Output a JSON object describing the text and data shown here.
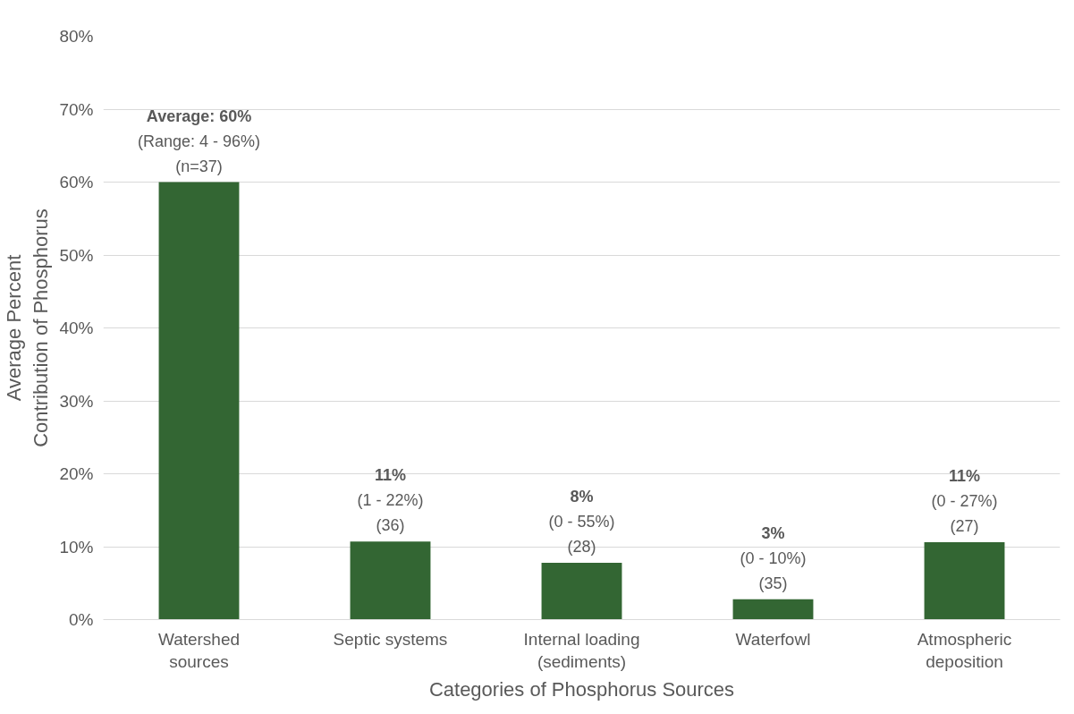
{
  "chart_data": {
    "type": "bar",
    "xlabel": "Categories of Phosphorus Sources",
    "ylabel": "Average Percent\nContribution of Phosphorus",
    "categories": [
      "Watershed\nsources",
      "Septic systems",
      "Internal loading\n(sediments)",
      "Waterfowl",
      "Atmospheric\ndeposition"
    ],
    "values": [
      60,
      10.7,
      7.8,
      2.8,
      10.6
    ],
    "color": "#336633",
    "value_labels": [
      "Average: 60%\n(Range: 4 - 96%)\n(n=37)",
      "11%\n(1 - 22%)\n(36)",
      "8%\n(0 - 55%)\n(28)",
      "3%\n(0 - 10%)\n(35)",
      "11%\n(0 - 27%)\n(27)"
    ],
    "ylim": [
      0,
      80
    ],
    "yticks": [
      {
        "value": 0,
        "label": "0%"
      },
      {
        "value": 10,
        "label": "10%"
      },
      {
        "value": 20,
        "label": "20%"
      },
      {
        "value": 30,
        "label": "30%"
      },
      {
        "value": 40,
        "label": "40%"
      },
      {
        "value": 50,
        "label": "50%"
      },
      {
        "value": 60,
        "label": "60%"
      },
      {
        "value": 70,
        "label": "70%"
      },
      {
        "value": 80,
        "label": "80%"
      }
    ],
    "grid": "y"
  }
}
